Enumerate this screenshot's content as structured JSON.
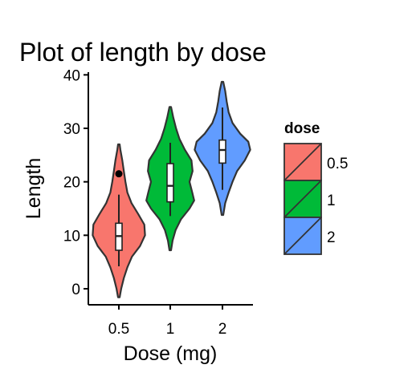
{
  "chart_data": {
    "type": "violin",
    "title": "Plot of length  by dose",
    "xlabel": "Dose (mg)",
    "ylabel": "Length",
    "categories": [
      "0.5",
      "1",
      "2"
    ],
    "ylim": [
      -3,
      40.5
    ],
    "yticks": [
      0,
      10,
      20,
      30,
      40
    ],
    "grid": false,
    "legend": {
      "title": "dose",
      "placement": "right",
      "entries": [
        "0.5",
        "1",
        "2"
      ]
    },
    "colors": [
      "#F8766D",
      "#00BA38",
      "#619CFF"
    ],
    "series": [
      {
        "category": "0.5",
        "min": 4.2,
        "q1": 7.2,
        "median": 9.85,
        "q3": 12.25,
        "max": 17.6,
        "outliers": [
          21.5
        ],
        "density": [
          [
            -1.6,
            0.02
          ],
          [
            0,
            0.06
          ],
          [
            2,
            0.13
          ],
          [
            4,
            0.22
          ],
          [
            6,
            0.34
          ],
          [
            8,
            0.55
          ],
          [
            10,
            0.68
          ],
          [
            12,
            0.66
          ],
          [
            14,
            0.5
          ],
          [
            16,
            0.33
          ],
          [
            18,
            0.22
          ],
          [
            20,
            0.17
          ],
          [
            22,
            0.13
          ],
          [
            24,
            0.09
          ],
          [
            26,
            0.04
          ],
          [
            27,
            0.02
          ]
        ]
      },
      {
        "category": "1",
        "min": 13.6,
        "q1": 16.25,
        "median": 19.25,
        "q3": 23.4,
        "max": 27.3,
        "outliers": [],
        "density": [
          [
            7.2,
            0.02
          ],
          [
            9,
            0.06
          ],
          [
            11,
            0.14
          ],
          [
            13,
            0.28
          ],
          [
            15,
            0.5
          ],
          [
            16.5,
            0.62
          ],
          [
            18,
            0.57
          ],
          [
            20,
            0.5
          ],
          [
            22,
            0.58
          ],
          [
            24,
            0.55
          ],
          [
            26,
            0.38
          ],
          [
            28,
            0.24
          ],
          [
            30,
            0.15
          ],
          [
            32,
            0.08
          ],
          [
            34,
            0.02
          ]
        ]
      },
      {
        "category": "2",
        "min": 18.5,
        "q1": 23.5,
        "median": 25.95,
        "q3": 27.8,
        "max": 33.9,
        "outliers": [],
        "density": [
          [
            13.8,
            0.02
          ],
          [
            16,
            0.07
          ],
          [
            18,
            0.16
          ],
          [
            20,
            0.26
          ],
          [
            22,
            0.38
          ],
          [
            24,
            0.58
          ],
          [
            26,
            0.72
          ],
          [
            27.5,
            0.67
          ],
          [
            29,
            0.46
          ],
          [
            31,
            0.26
          ],
          [
            33,
            0.16
          ],
          [
            35,
            0.11
          ],
          [
            37,
            0.07
          ],
          [
            38.7,
            0.02
          ]
        ]
      }
    ]
  }
}
